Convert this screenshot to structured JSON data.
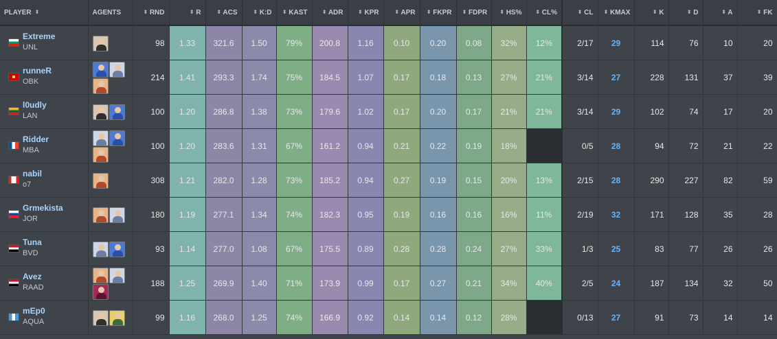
{
  "headers": {
    "player": "PLAYER",
    "agents": "AGENTS",
    "rnd": "RND",
    "r": "R",
    "acs": "ACS",
    "kd": "K:D",
    "kast": "KAST",
    "adr": "ADR",
    "kpr": "KPR",
    "apr": "APR",
    "fkpr": "FKPR",
    "fdpr": "FDPR",
    "hs": "HS%",
    "clpct": "CL%",
    "cl": "CL",
    "kmax": "KMAX",
    "k": "K",
    "d": "D",
    "a": "A",
    "fk": "FK"
  },
  "sort_glyph": "⬍",
  "players": [
    {
      "name": "Extreme",
      "team": "UNL",
      "country": "Bulgaria",
      "agents": [
        "portrait-a"
      ],
      "rnd": "98",
      "r": "1.33",
      "acs": "321.6",
      "kd": "1.50",
      "kast": "79%",
      "adr": "200.8",
      "kpr": "1.16",
      "apr": "0.10",
      "fkpr": "0.20",
      "fdpr": "0.08",
      "hs": "32%",
      "clpct": "12%",
      "cl": "2/17",
      "kmax": "29",
      "k": "114",
      "d": "76",
      "a": "10",
      "fk": "20"
    },
    {
      "name": "runneR",
      "team": "OBK",
      "country": "North Macedonia",
      "agents": [
        "portrait-b",
        "portrait-c",
        "portrait-d"
      ],
      "rnd": "214",
      "r": "1.41",
      "acs": "293.3",
      "kd": "1.74",
      "kast": "75%",
      "adr": "184.5",
      "kpr": "1.07",
      "apr": "0.17",
      "fkpr": "0.18",
      "fdpr": "0.13",
      "hs": "27%",
      "clpct": "21%",
      "cl": "3/14",
      "kmax": "27",
      "k": "228",
      "d": "131",
      "a": "37",
      "fk": "39"
    },
    {
      "name": "l0udly",
      "team": "LAN",
      "country": "Lithuania",
      "agents": [
        "portrait-a",
        "portrait-b"
      ],
      "rnd": "100",
      "r": "1.20",
      "acs": "286.8",
      "kd": "1.38",
      "kast": "73%",
      "adr": "179.6",
      "kpr": "1.02",
      "apr": "0.17",
      "fkpr": "0.20",
      "fdpr": "0.17",
      "hs": "21%",
      "clpct": "21%",
      "cl": "3/14",
      "kmax": "29",
      "k": "102",
      "d": "74",
      "a": "17",
      "fk": "20"
    },
    {
      "name": "Ridder",
      "team": "MBA",
      "country": "France",
      "agents": [
        "portrait-c",
        "portrait-b",
        "portrait-d"
      ],
      "rnd": "100",
      "r": "1.20",
      "acs": "283.6",
      "kd": "1.31",
      "kast": "67%",
      "adr": "161.2",
      "kpr": "0.94",
      "apr": "0.21",
      "fkpr": "0.22",
      "fdpr": "0.19",
      "hs": "18%",
      "clpct": "",
      "cl": "0/5",
      "kmax": "28",
      "k": "94",
      "d": "72",
      "a": "21",
      "fk": "22"
    },
    {
      "name": "nabil",
      "team": "o7",
      "country": "Canada",
      "agents": [
        "portrait-d"
      ],
      "rnd": "308",
      "r": "1.21",
      "acs": "282.0",
      "kd": "1.28",
      "kast": "73%",
      "adr": "185.2",
      "kpr": "0.94",
      "apr": "0.27",
      "fkpr": "0.19",
      "fdpr": "0.15",
      "hs": "20%",
      "clpct": "13%",
      "cl": "2/15",
      "kmax": "28",
      "k": "290",
      "d": "227",
      "a": "82",
      "fk": "59"
    },
    {
      "name": "Grmekista",
      "team": "JOR",
      "country": "Slovenia",
      "agents": [
        "portrait-d",
        "portrait-c"
      ],
      "rnd": "180",
      "r": "1.19",
      "acs": "277.1",
      "kd": "1.34",
      "kast": "74%",
      "adr": "182.3",
      "kpr": "0.95",
      "apr": "0.19",
      "fkpr": "0.16",
      "fdpr": "0.16",
      "hs": "16%",
      "clpct": "11%",
      "cl": "2/19",
      "kmax": "32",
      "k": "171",
      "d": "128",
      "a": "35",
      "fk": "28"
    },
    {
      "name": "Tuna",
      "team": "BVD",
      "country": "Egypt",
      "agents": [
        "portrait-c",
        "portrait-b"
      ],
      "rnd": "93",
      "r": "1.14",
      "acs": "277.0",
      "kd": "1.08",
      "kast": "67%",
      "adr": "175.5",
      "kpr": "0.89",
      "apr": "0.28",
      "fkpr": "0.28",
      "fdpr": "0.24",
      "hs": "27%",
      "clpct": "33%",
      "cl": "1/3",
      "kmax": "25",
      "k": "83",
      "d": "77",
      "a": "26",
      "fk": "26"
    },
    {
      "name": "Avez",
      "team": "RAAD",
      "country": "Egypt",
      "agents": [
        "portrait-d",
        "portrait-c",
        "portrait-e"
      ],
      "rnd": "188",
      "r": "1.25",
      "acs": "269.9",
      "kd": "1.40",
      "kast": "71%",
      "adr": "173.9",
      "kpr": "0.99",
      "apr": "0.17",
      "fkpr": "0.27",
      "fdpr": "0.21",
      "hs": "34%",
      "clpct": "40%",
      "cl": "2/5",
      "kmax": "24",
      "k": "187",
      "d": "134",
      "a": "32",
      "fk": "50"
    },
    {
      "name": "mEp0",
      "team": "AQUA",
      "country": "Guatemala",
      "agents": [
        "portrait-a",
        "portrait-f"
      ],
      "rnd": "99",
      "r": "1.16",
      "acs": "268.0",
      "kd": "1.25",
      "kast": "74%",
      "adr": "166.9",
      "kpr": "0.92",
      "apr": "0.14",
      "fkpr": "0.14",
      "fdpr": "0.12",
      "hs": "28%",
      "clpct": "",
      "cl": "0/13",
      "kmax": "27",
      "k": "91",
      "d": "73",
      "a": "14",
      "fk": "14"
    }
  ],
  "colors": {
    "r": "#7fb3ab",
    "acs": "#8d86a6",
    "kd": "#8a8aaa",
    "kast": "#7fae86",
    "adr": "#9a8ab0",
    "kpr": "#8787b0",
    "apr": "#8fa87e",
    "fkpr": "#7a96ad",
    "fdpr": "#7fa888",
    "hs": "#97ad88",
    "clpct": "#7fb79a",
    "empty": "#2b2e33"
  }
}
